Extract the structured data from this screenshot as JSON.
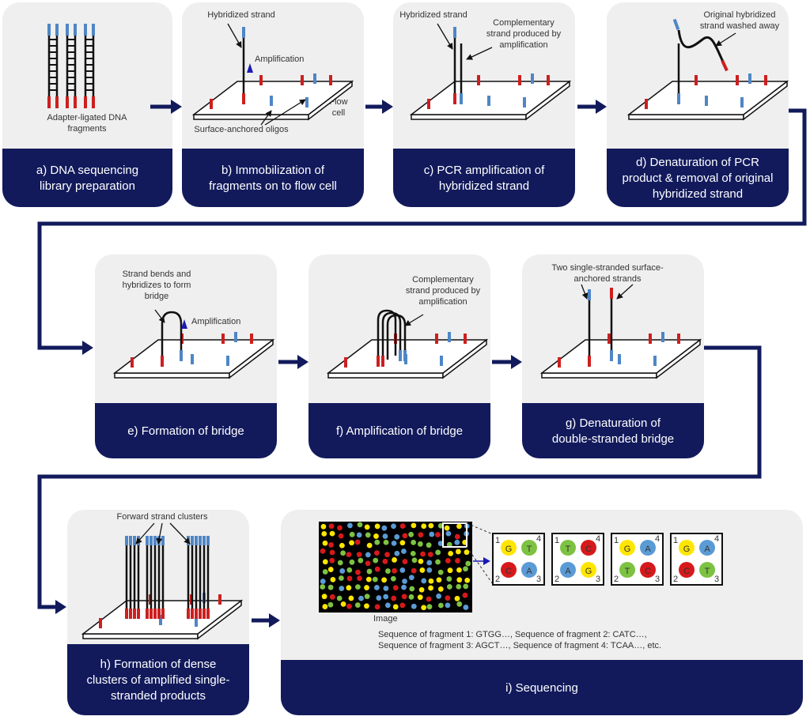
{
  "panels": [
    {
      "caption": [
        "a) DNA sequencing",
        "library preparation"
      ],
      "labels": [
        [
          "Adapter-ligated DNA",
          "fragments"
        ]
      ]
    },
    {
      "caption": [
        "b) Immobilization of",
        "fragments on to flow cell"
      ],
      "labels": [
        [
          "Hybridized strand"
        ],
        [
          "Amplification"
        ],
        [
          "Flow",
          "cell"
        ],
        [
          "Surface-anchored oligos"
        ]
      ]
    },
    {
      "caption": [
        "c) PCR amplification of",
        "hybridized strand"
      ],
      "labels": [
        [
          "Hybridized strand"
        ],
        [
          "Complementary",
          "strand produced by",
          "amplification"
        ]
      ]
    },
    {
      "caption": [
        "d) Denaturation of PCR",
        "product & removal of original",
        "hybridized strand"
      ],
      "labels": [
        [
          "Original hybridized",
          "strand washed away"
        ]
      ]
    },
    {
      "caption": [
        "e) Formation of bridge"
      ],
      "labels": [
        [
          "Strand bends and",
          "hybridizes to form",
          "bridge"
        ],
        [
          "Amplification"
        ]
      ]
    },
    {
      "caption": [
        "f) Amplification of bridge"
      ],
      "labels": [
        [
          "Complementary",
          "strand produced by",
          "amplification"
        ]
      ]
    },
    {
      "caption": [
        "g) Denaturation of",
        "double-stranded bridge"
      ],
      "labels": [
        [
          "Two single-stranded surface-",
          "anchored strands"
        ]
      ]
    },
    {
      "caption": [
        "h) Formation of dense",
        "clusters of amplified single-",
        "stranded products"
      ],
      "labels": [
        [
          "Forward strand clusters"
        ]
      ]
    },
    {
      "caption": [
        "i) Sequencing"
      ],
      "labels": [
        [
          "Image"
        ],
        [
          "Sequence of fragment 1: GTGG…, Sequence of fragment 2: CATC…,",
          "Sequence of fragment 3: AGCT…, Sequence of fragment 4: TCAA…, etc."
        ]
      ]
    }
  ],
  "tiles": {
    "corners": [
      "1",
      "4",
      "2",
      "3"
    ],
    "items": [
      [
        {
          "letter": "G",
          "color": "#ffe600"
        },
        {
          "letter": "T",
          "color": "#7dc242"
        },
        {
          "letter": "C",
          "color": "#d7191c"
        },
        {
          "letter": "A",
          "color": "#5b9bd5"
        }
      ],
      [
        {
          "letter": "T",
          "color": "#7dc242"
        },
        {
          "letter": "C",
          "color": "#d7191c"
        },
        {
          "letter": "A",
          "color": "#5b9bd5"
        },
        {
          "letter": "G",
          "color": "#ffe600"
        }
      ],
      [
        {
          "letter": "G",
          "color": "#ffe600"
        },
        {
          "letter": "A",
          "color": "#5b9bd5"
        },
        {
          "letter": "T",
          "color": "#7dc242"
        },
        {
          "letter": "C",
          "color": "#d7191c"
        }
      ],
      [
        {
          "letter": "G",
          "color": "#ffe600"
        },
        {
          "letter": "A",
          "color": "#5b9bd5"
        },
        {
          "letter": "C",
          "color": "#d7191c"
        },
        {
          "letter": "T",
          "color": "#7dc242"
        }
      ]
    ]
  }
}
